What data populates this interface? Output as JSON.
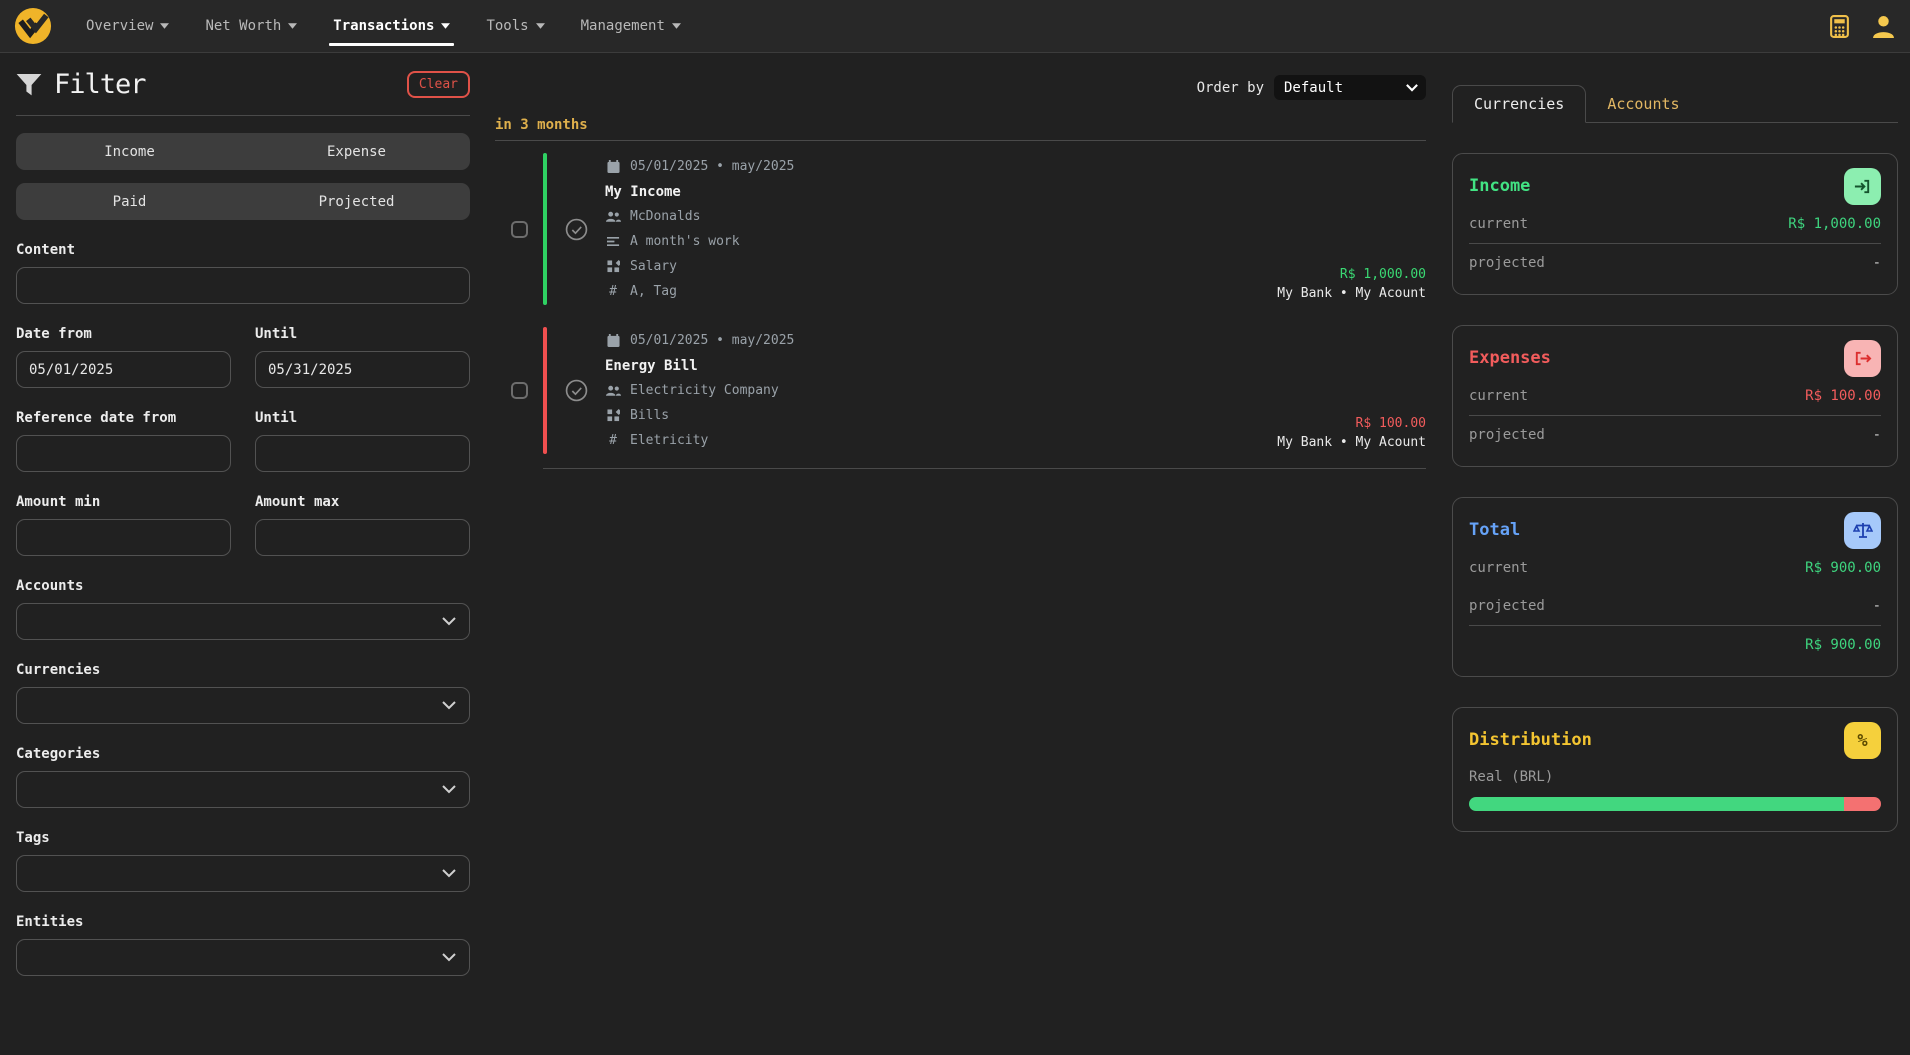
{
  "navbar": {
    "items": [
      {
        "label": "Overview",
        "active": false
      },
      {
        "label": "Net Worth",
        "active": false
      },
      {
        "label": "Transactions",
        "active": true
      },
      {
        "label": "Tools",
        "active": false
      },
      {
        "label": "Management",
        "active": false
      }
    ]
  },
  "filter": {
    "title": "Filter",
    "clear_label": "Clear",
    "type_toggle": {
      "left": "Income",
      "right": "Expense"
    },
    "status_toggle": {
      "left": "Paid",
      "right": "Projected"
    },
    "content_label": "Content",
    "date_from_label": "Date from",
    "date_from_value": "05/01/2025",
    "date_until_label": "Until",
    "date_until_value": "05/31/2025",
    "ref_date_from_label": "Reference date from",
    "ref_date_until_label": "Until",
    "amount_min_label": "Amount min",
    "amount_max_label": "Amount max",
    "accounts_label": "Accounts",
    "currencies_label": "Currencies",
    "categories_label": "Categories",
    "tags_label": "Tags",
    "entities_label": "Entities"
  },
  "transactions": {
    "order_by_label": "Order by",
    "order_by_value": "Default",
    "group_header": "in 3 months",
    "tag_prefix": "#",
    "items": [
      {
        "date_line": "05/01/2025 • may/2025",
        "title": "My Income",
        "entity": "McDonalds",
        "description": "A month's work",
        "category": "Salary",
        "tags": "A, Tag",
        "amount": "R$ 1,000.00",
        "account": "My Bank • My Acount",
        "type": "income"
      },
      {
        "date_line": "05/01/2025 • may/2025",
        "title": "Energy Bill",
        "entity": "Electricity Company",
        "category": "Bills",
        "tags": "Eletricity",
        "amount": "R$ 100.00",
        "account": "My Bank • My Acount",
        "type": "expense"
      }
    ]
  },
  "summary": {
    "tabs": [
      {
        "label": "Currencies",
        "active": true
      },
      {
        "label": "Accounts",
        "active": false
      }
    ],
    "income": {
      "title": "Income",
      "current_label": "current",
      "current_value": "R$ 1,000.00",
      "projected_label": "projected",
      "projected_value": "-"
    },
    "expenses": {
      "title": "Expenses",
      "current_label": "current",
      "current_value": "R$ 100.00",
      "projected_label": "projected",
      "projected_value": "-"
    },
    "total": {
      "title": "Total",
      "current_label": "current",
      "current_value": "R$ 900.00",
      "projected_label": "projected",
      "projected_value": "-",
      "total_value": "R$ 900.00"
    },
    "distribution": {
      "title": "Distribution",
      "currency": "Real (BRL)",
      "percent_glyph": "%",
      "income_pct": 90.9,
      "expense_pct": 9.1
    }
  },
  "colors": {
    "accent_yellow": "#f0b429",
    "muted_yellow": "#e2b763",
    "green": "#3ed47e",
    "red": "#f25c5c",
    "blue": "#66a3f8",
    "background": "#212121",
    "navbar": "#282828",
    "border": "#4a4a4a"
  }
}
